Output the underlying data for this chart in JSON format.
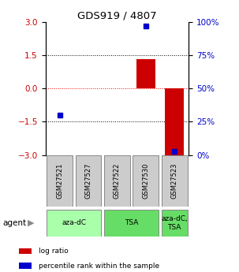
{
  "title": "GDS919 / 4807",
  "samples": [
    "GSM27521",
    "GSM27527",
    "GSM27522",
    "GSM27530",
    "GSM27523"
  ],
  "log_ratios": [
    0.02,
    0.0,
    0.0,
    1.3,
    -3.0
  ],
  "percentile_ranks": [
    30,
    null,
    null,
    97,
    3
  ],
  "ylim": [
    -3,
    3
  ],
  "yticks_left": [
    -3,
    -1.5,
    0,
    1.5,
    3
  ],
  "yticks_right": [
    0,
    25,
    50,
    75,
    100
  ],
  "hlines": [
    -1.5,
    0,
    1.5
  ],
  "hline_colors": [
    "black",
    "red",
    "black"
  ],
  "hline_styles": [
    "dotted",
    "dotted",
    "dotted"
  ],
  "bar_color": "#cc0000",
  "point_color": "#0000cc",
  "agent_groups": [
    {
      "label": "aza-dC",
      "span": [
        0,
        1
      ],
      "color": "#aaffaa"
    },
    {
      "label": "TSA",
      "span": [
        2,
        3
      ],
      "color": "#66dd66"
    },
    {
      "label": "aza-dC,\nTSA",
      "span": [
        4,
        4
      ],
      "color": "#66dd66"
    }
  ],
  "sample_box_color": "#cccccc",
  "legend_items": [
    {
      "color": "#cc0000",
      "label": "log ratio"
    },
    {
      "color": "#0000cc",
      "label": "percentile rank within the sample"
    }
  ],
  "left_tick_color": "#cc0000",
  "right_tick_color": "#0000cc",
  "agent_label": "agent"
}
